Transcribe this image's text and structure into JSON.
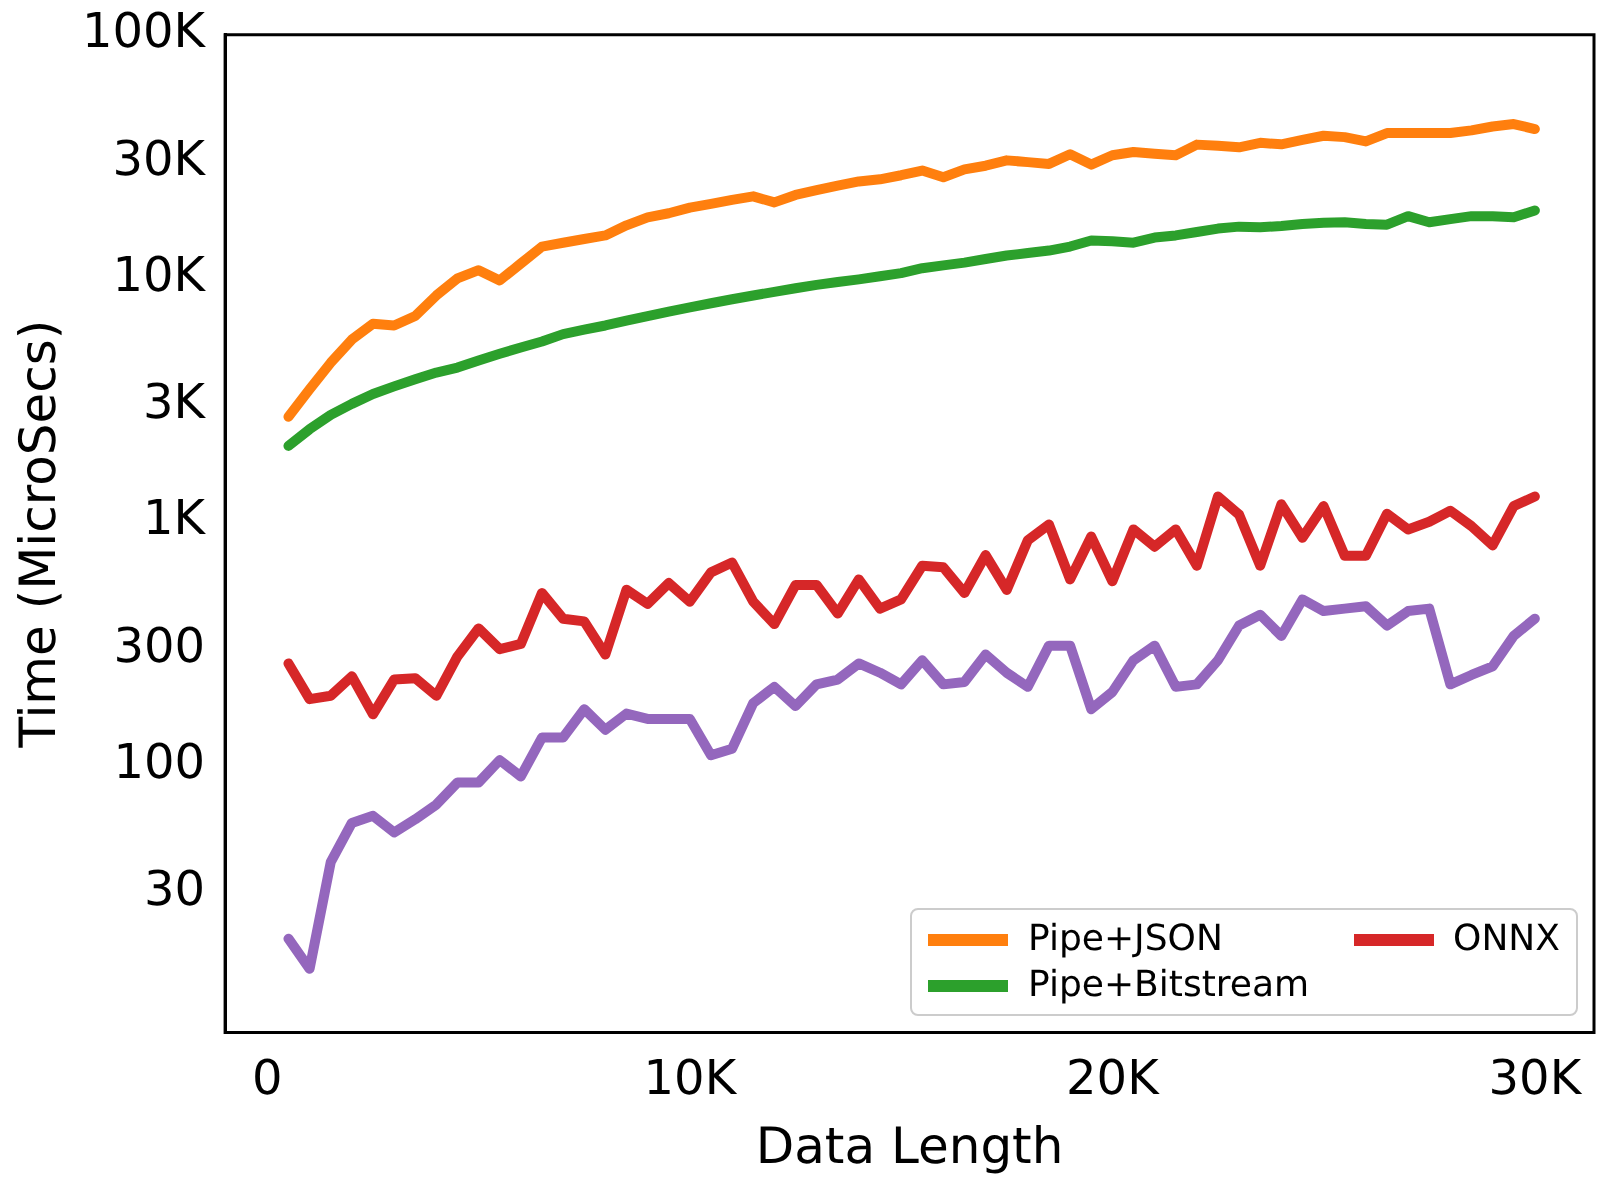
{
  "chart_data": {
    "type": "line",
    "xlabel": "Data Length",
    "ylabel": "Time (MicroSecs)",
    "log": "y",
    "grid": false,
    "legend": "bottom right",
    "marker": "none",
    "line_style": "solid",
    "x": [
      500,
      1000,
      1500,
      2000,
      2500,
      3000,
      3500,
      4000,
      4500,
      5000,
      5500,
      6000,
      6500,
      7000,
      7500,
      8000,
      8500,
      9000,
      9500,
      10000,
      10500,
      11000,
      11500,
      12000,
      12500,
      13000,
      13500,
      14000,
      14500,
      15000,
      15500,
      16000,
      16500,
      17000,
      17500,
      18000,
      18500,
      19000,
      19500,
      20000,
      20500,
      21000,
      21500,
      22000,
      22500,
      23000,
      23500,
      24000,
      24500,
      25000,
      25500,
      26000,
      26500,
      27000,
      27500,
      28000,
      28500,
      29000,
      29500,
      30000
    ],
    "xlim": [
      -1000,
      31400
    ],
    "xticks": [
      0,
      {
        "value": 10000,
        "label": "10K"
      },
      {
        "value": 20000,
        "label": "20K"
      },
      {
        "value": 30000,
        "label": "30K"
      }
    ],
    "ylim": [
      8,
      100000
    ],
    "yticks": [
      30,
      100,
      300,
      {
        "value": 1000,
        "label": "1K"
      },
      {
        "value": 3000,
        "label": "3K"
      },
      {
        "value": 10000,
        "label": "10K"
      },
      {
        "value": 30000,
        "label": "30K"
      },
      {
        "value": 100000,
        "label": "100K"
      }
    ],
    "series": [
      {
        "name": "Pipe+JSON",
        "color": "#ff7f0e",
        "values": [
          2700,
          3500,
          4500,
          5600,
          6500,
          6400,
          7000,
          8500,
          10000,
          10800,
          9800,
          11500,
          13500,
          14000,
          14500,
          15000,
          16500,
          17800,
          18500,
          19500,
          20200,
          21000,
          21700,
          20500,
          22000,
          23000,
          24000,
          25000,
          25500,
          26500,
          27700,
          26000,
          28000,
          29000,
          30500,
          30000,
          29500,
          32300,
          29300,
          32000,
          33000,
          32500,
          32000,
          35400,
          35000,
          34500,
          36000,
          35500,
          37000,
          38500,
          38000,
          36500,
          39500,
          39500,
          39500,
          39500,
          40500,
          42000,
          43000,
          41000
        ]
      },
      {
        "name": "Pipe+Bitstream",
        "color": "#2ca02c",
        "values": [
          2050,
          2400,
          2750,
          3050,
          3350,
          3600,
          3850,
          4100,
          4300,
          4600,
          4900,
          5200,
          5500,
          5900,
          6150,
          6400,
          6700,
          7000,
          7300,
          7600,
          7900,
          8200,
          8500,
          8800,
          9100,
          9400,
          9650,
          9900,
          10200,
          10500,
          11000,
          11300,
          11600,
          12000,
          12400,
          12700,
          13000,
          13500,
          14300,
          14200,
          14000,
          14700,
          15000,
          15500,
          16000,
          16300,
          16200,
          16400,
          16700,
          16900,
          17000,
          16700,
          16600,
          18000,
          17000,
          17500,
          18000,
          18000,
          17800,
          19000
        ]
      },
      {
        "name": "ONNX",
        "color": "#d62728",
        "values": [
          262,
          187,
          193,
          232,
          162,
          225,
          228,
          193,
          280,
          365,
          300,
          315,
          510,
          400,
          390,
          285,
          526,
          460,
          560,
          470,
          620,
          680,
          470,
          380,
          550,
          550,
          420,
          580,
          440,
          480,
          660,
          650,
          510,
          730,
          525,
          840,
          975,
          580,
          870,
          570,
          930,
          790,
          930,
          660,
          1270,
          1070,
          660,
          1180,
          860,
          1160,
          725,
          725,
          1080,
          930,
          1000,
          1110,
          960,
          800,
          1160,
          1270
        ]
      },
      {
        "color": "#9467bd",
        "values": [
          19.4,
          14.6,
          40,
          58,
          62,
          53,
          60,
          69,
          85,
          85,
          105,
          90,
          130,
          130,
          170,
          140,
          163,
          155,
          155,
          155,
          110,
          117,
          180,
          210,
          175,
          215,
          225,
          262,
          240,
          215,
          270,
          215,
          220,
          285,
          240,
          210,
          310,
          310,
          170,
          200,
          270,
          310,
          210,
          215,
          270,
          375,
          415,
          340,
          480,
          430,
          440,
          450,
          375,
          430,
          440,
          215,
          235,
          255,
          340,
          400
        ]
      }
    ]
  }
}
